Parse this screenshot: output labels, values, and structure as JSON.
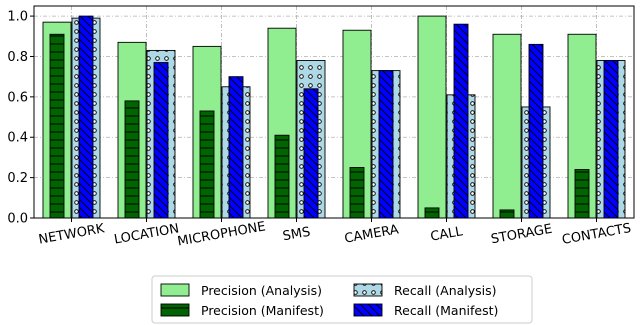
{
  "chart_data": {
    "type": "bar",
    "categories": [
      "NETWORK",
      "LOCATION",
      "MICROPHONE",
      "SMS",
      "CAMERA",
      "CALL",
      "STORAGE",
      "CONTACTS"
    ],
    "series": [
      {
        "name": "Precision (Analysis)",
        "color": "#90ee90",
        "pattern": "none",
        "values": [
          0.97,
          0.87,
          0.85,
          0.94,
          0.93,
          1.0,
          0.91,
          0.91
        ]
      },
      {
        "name": "Precision (Manifest)",
        "color": "#006400",
        "pattern": "horizontal-lines",
        "values": [
          0.91,
          0.58,
          0.53,
          0.41,
          0.25,
          0.05,
          0.04,
          0.24
        ]
      },
      {
        "name": "Recall (Analysis)",
        "color": "#add8e6",
        "pattern": "circles",
        "values": [
          0.99,
          0.83,
          0.65,
          0.78,
          0.73,
          0.61,
          0.55,
          0.78
        ]
      },
      {
        "name": "Recall (Manifest)",
        "color": "#0000ff",
        "pattern": "diagonal-lines",
        "values": [
          1.0,
          0.77,
          0.7,
          0.64,
          0.73,
          0.96,
          0.86,
          0.78
        ]
      }
    ],
    "title": "",
    "xlabel": "",
    "ylabel": "",
    "ylim": [
      0,
      1.05
    ],
    "yticks": [
      "0.0",
      "0.2",
      "0.4",
      "0.6",
      "0.8",
      "1.0"
    ],
    "grid": true,
    "legend_placement": "bottom"
  }
}
